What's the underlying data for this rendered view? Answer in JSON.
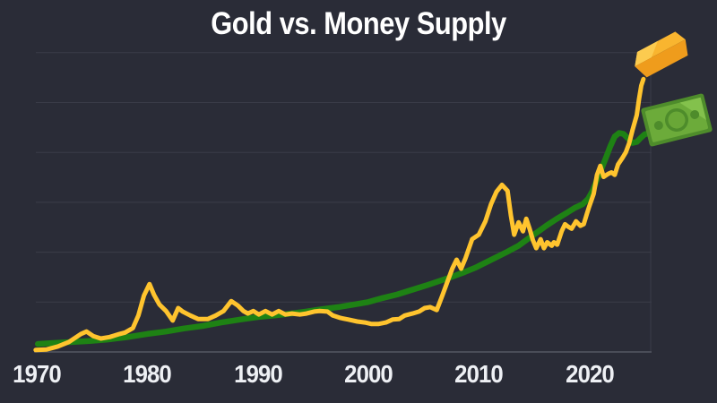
{
  "title": "Gold vs. Money Supply",
  "colors": {
    "background": "#2a2c37",
    "gridline": "#3a3c48",
    "axis_line": "#4a4d58",
    "title_text": "#ffffff",
    "tick_text": "#eef0f4",
    "gold_line": "#ffc42e",
    "money_line": "#1e8214",
    "bar_top": "#f9b52f",
    "bar_top_hi": "#fccb4f",
    "bar_front": "#ef9c1c",
    "bill_edge": "#4e8c2b",
    "bill_body": "#6cab3a",
    "bill_lite": "#83c14c",
    "bill_mid": "#69a737"
  },
  "icons": [
    {
      "name": "gold-bar-icon",
      "depicts": "gold ingot",
      "marks": "end of Gold line"
    },
    {
      "name": "dollar-bill-icon",
      "depicts": "dollar bill",
      "marks": "end of Money Supply line"
    }
  ],
  "chart_data": {
    "type": "line",
    "title": "Gold vs. Money Supply",
    "legend": "none (lines identified by end icons: gold bar = gold, dollar bill = money supply)",
    "x_axis": {
      "tick_labels": [
        "1970",
        "1980",
        "1990",
        "2000",
        "2010",
        "2020"
      ],
      "tick_years": [
        1970,
        1980,
        1990,
        2000,
        2010,
        2020
      ],
      "range_years": [
        1969.9,
        2025.6
      ]
    },
    "y_axis": {
      "labels_visible": false,
      "units": "relative level, 1 unit = one gridline spacing above baseline",
      "range": [
        0,
        6
      ],
      "gridline_count": 6
    },
    "series": [
      {
        "name": "Money Supply",
        "color": "#1e8214",
        "end_icon": "dollar-bill-icon",
        "points": [
          [
            1970.1,
            0.16
          ],
          [
            1971.5,
            0.18
          ],
          [
            1973.2,
            0.2
          ],
          [
            1974.8,
            0.22
          ],
          [
            1976.4,
            0.25
          ],
          [
            1978.0,
            0.29
          ],
          [
            1980.0,
            0.36
          ],
          [
            1981.7,
            0.41
          ],
          [
            1983.3,
            0.47
          ],
          [
            1985.0,
            0.52
          ],
          [
            1986.7,
            0.59
          ],
          [
            1988.4,
            0.65
          ],
          [
            1990.0,
            0.7
          ],
          [
            1991.5,
            0.73
          ],
          [
            1993.0,
            0.77
          ],
          [
            1994.4,
            0.81
          ],
          [
            1995.9,
            0.86
          ],
          [
            1997.3,
            0.9
          ],
          [
            1998.7,
            0.95
          ],
          [
            2000.0,
            1.0
          ],
          [
            2001.3,
            1.08
          ],
          [
            2002.6,
            1.15
          ],
          [
            2003.9,
            1.24
          ],
          [
            2005.2,
            1.33
          ],
          [
            2006.4,
            1.42
          ],
          [
            2007.6,
            1.51
          ],
          [
            2008.7,
            1.6
          ],
          [
            2009.7,
            1.69
          ],
          [
            2010.6,
            1.79
          ],
          [
            2011.6,
            1.9
          ],
          [
            2012.6,
            2.01
          ],
          [
            2013.6,
            2.13
          ],
          [
            2014.4,
            2.26
          ],
          [
            2015.3,
            2.4
          ],
          [
            2016.1,
            2.53
          ],
          [
            2017.0,
            2.66
          ],
          [
            2017.9,
            2.78
          ],
          [
            2018.7,
            2.89
          ],
          [
            2019.4,
            2.96
          ],
          [
            2019.9,
            3.07
          ],
          [
            2020.3,
            3.23
          ],
          [
            2020.7,
            3.46
          ],
          [
            2021.1,
            3.67
          ],
          [
            2021.5,
            3.89
          ],
          [
            2021.9,
            4.12
          ],
          [
            2022.3,
            4.32
          ],
          [
            2022.7,
            4.39
          ],
          [
            2023.1,
            4.37
          ],
          [
            2023.5,
            4.28
          ],
          [
            2023.9,
            4.19
          ],
          [
            2024.3,
            4.21
          ],
          [
            2024.6,
            4.28
          ],
          [
            2025.0,
            4.36
          ],
          [
            2025.4,
            4.39
          ]
        ]
      },
      {
        "name": "Gold",
        "color": "#ffc42e",
        "end_icon": "gold-bar-icon",
        "points": [
          [
            1969.9,
            0.04
          ],
          [
            1970.9,
            0.05
          ],
          [
            1971.9,
            0.11
          ],
          [
            1972.9,
            0.2
          ],
          [
            1974.0,
            0.36
          ],
          [
            1974.5,
            0.41
          ],
          [
            1975.1,
            0.32
          ],
          [
            1975.8,
            0.27
          ],
          [
            1976.6,
            0.3
          ],
          [
            1977.5,
            0.36
          ],
          [
            1978.0,
            0.39
          ],
          [
            1978.7,
            0.48
          ],
          [
            1979.2,
            0.73
          ],
          [
            1979.7,
            1.13
          ],
          [
            1980.2,
            1.36
          ],
          [
            1980.6,
            1.15
          ],
          [
            1981.1,
            0.95
          ],
          [
            1981.7,
            0.82
          ],
          [
            1982.3,
            0.63
          ],
          [
            1982.8,
            0.88
          ],
          [
            1983.2,
            0.81
          ],
          [
            1983.9,
            0.73
          ],
          [
            1984.6,
            0.66
          ],
          [
            1985.5,
            0.66
          ],
          [
            1986.2,
            0.73
          ],
          [
            1986.9,
            0.82
          ],
          [
            1987.6,
            1.02
          ],
          [
            1988.2,
            0.93
          ],
          [
            1988.7,
            0.82
          ],
          [
            1989.1,
            0.77
          ],
          [
            1989.6,
            0.82
          ],
          [
            1990.1,
            0.75
          ],
          [
            1990.7,
            0.82
          ],
          [
            1991.3,
            0.75
          ],
          [
            1991.9,
            0.82
          ],
          [
            1992.5,
            0.75
          ],
          [
            1993.1,
            0.77
          ],
          [
            1993.8,
            0.75
          ],
          [
            1994.4,
            0.77
          ],
          [
            1995.1,
            0.81
          ],
          [
            1995.6,
            0.82
          ],
          [
            1996.3,
            0.81
          ],
          [
            1996.8,
            0.73
          ],
          [
            1997.5,
            0.68
          ],
          [
            1998.2,
            0.65
          ],
          [
            1999.0,
            0.61
          ],
          [
            1999.7,
            0.59
          ],
          [
            2000.3,
            0.56
          ],
          [
            2000.9,
            0.56
          ],
          [
            2001.6,
            0.59
          ],
          [
            2002.2,
            0.65
          ],
          [
            2002.8,
            0.66
          ],
          [
            2003.3,
            0.73
          ],
          [
            2004.0,
            0.77
          ],
          [
            2004.6,
            0.81
          ],
          [
            2005.1,
            0.88
          ],
          [
            2005.6,
            0.9
          ],
          [
            2006.2,
            0.84
          ],
          [
            2006.7,
            1.13
          ],
          [
            2007.2,
            1.43
          ],
          [
            2007.6,
            1.67
          ],
          [
            2008.0,
            1.85
          ],
          [
            2008.4,
            1.67
          ],
          [
            2008.8,
            1.88
          ],
          [
            2009.4,
            2.26
          ],
          [
            2010.0,
            2.35
          ],
          [
            2010.6,
            2.62
          ],
          [
            2011.1,
            2.96
          ],
          [
            2011.6,
            3.21
          ],
          [
            2012.1,
            3.35
          ],
          [
            2012.6,
            3.23
          ],
          [
            2012.9,
            2.74
          ],
          [
            2013.2,
            2.35
          ],
          [
            2013.6,
            2.6
          ],
          [
            2014.0,
            2.42
          ],
          [
            2014.3,
            2.67
          ],
          [
            2014.6,
            2.47
          ],
          [
            2014.9,
            2.24
          ],
          [
            2015.2,
            2.08
          ],
          [
            2015.6,
            2.26
          ],
          [
            2015.9,
            2.08
          ],
          [
            2016.2,
            2.2
          ],
          [
            2016.6,
            2.13
          ],
          [
            2016.8,
            2.2
          ],
          [
            2017.1,
            2.15
          ],
          [
            2017.5,
            2.42
          ],
          [
            2017.8,
            2.56
          ],
          [
            2018.1,
            2.51
          ],
          [
            2018.4,
            2.47
          ],
          [
            2018.8,
            2.62
          ],
          [
            2019.2,
            2.53
          ],
          [
            2019.5,
            2.56
          ],
          [
            2019.8,
            2.78
          ],
          [
            2020.0,
            2.92
          ],
          [
            2020.4,
            3.17
          ],
          [
            2020.7,
            3.55
          ],
          [
            2021.0,
            3.73
          ],
          [
            2021.3,
            3.51
          ],
          [
            2021.7,
            3.57
          ],
          [
            2022.0,
            3.6
          ],
          [
            2022.3,
            3.55
          ],
          [
            2022.6,
            3.76
          ],
          [
            2023.0,
            3.89
          ],
          [
            2023.3,
            4.0
          ],
          [
            2023.6,
            4.18
          ],
          [
            2023.9,
            4.44
          ],
          [
            2024.3,
            4.75
          ],
          [
            2024.5,
            5.07
          ],
          [
            2024.7,
            5.34
          ],
          [
            2024.9,
            5.47
          ]
        ]
      }
    ]
  }
}
